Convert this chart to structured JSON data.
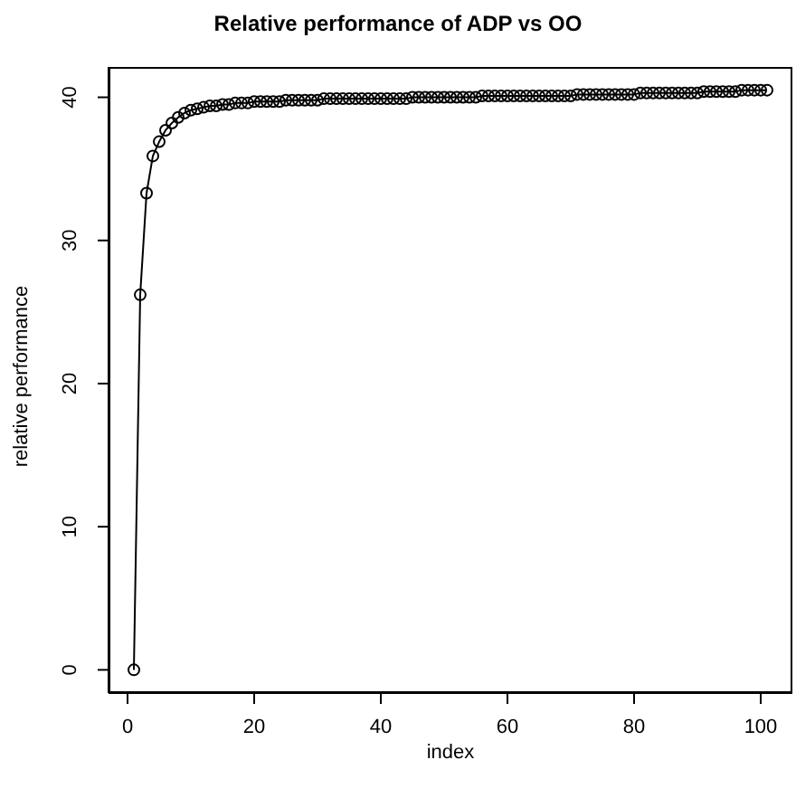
{
  "chart_data": {
    "type": "line",
    "title": "Relative performance of ADP vs OO",
    "xlabel": "index",
    "ylabel": "relative performance",
    "x": [
      1,
      2,
      3,
      4,
      5,
      6,
      7,
      8,
      9,
      10,
      11,
      12,
      13,
      14,
      15,
      16,
      17,
      18,
      19,
      20,
      21,
      22,
      23,
      24,
      25,
      26,
      27,
      28,
      29,
      30,
      31,
      32,
      33,
      34,
      35,
      36,
      37,
      38,
      39,
      40,
      41,
      42,
      43,
      44,
      45,
      46,
      47,
      48,
      49,
      50,
      51,
      52,
      53,
      54,
      55,
      56,
      57,
      58,
      59,
      60,
      61,
      62,
      63,
      64,
      65,
      66,
      67,
      68,
      69,
      70,
      71,
      72,
      73,
      74,
      75,
      76,
      77,
      78,
      79,
      80,
      81,
      82,
      83,
      84,
      85,
      86,
      87,
      88,
      89,
      90,
      91,
      92,
      93,
      94,
      95,
      96,
      97,
      98,
      99,
      100,
      101
    ],
    "series": [
      {
        "color": "#000000",
        "values": [
          0,
          26.2,
          33.3,
          35.9,
          36.9,
          37.7,
          38.2,
          38.6,
          38.9,
          39.1,
          39.2,
          39.3,
          39.4,
          39.4,
          39.5,
          39.5,
          39.6,
          39.6,
          39.6,
          39.7,
          39.7,
          39.7,
          39.7,
          39.7,
          39.8,
          39.8,
          39.8,
          39.8,
          39.8,
          39.8,
          39.9,
          39.9,
          39.9,
          39.9,
          39.9,
          39.9,
          39.9,
          39.9,
          39.9,
          39.9,
          39.9,
          39.9,
          39.9,
          39.9,
          40.0,
          40.0,
          40.0,
          40.0,
          40.0,
          40.0,
          40.0,
          40.0,
          40.0,
          40.0,
          40.0,
          40.1,
          40.1,
          40.1,
          40.1,
          40.1,
          40.1,
          40.1,
          40.1,
          40.1,
          40.1,
          40.1,
          40.1,
          40.1,
          40.1,
          40.1,
          40.2,
          40.2,
          40.2,
          40.2,
          40.2,
          40.2,
          40.2,
          40.2,
          40.2,
          40.2,
          40.3,
          40.3,
          40.3,
          40.3,
          40.3,
          40.3,
          40.3,
          40.3,
          40.3,
          40.3,
          40.4,
          40.4,
          40.4,
          40.4,
          40.4,
          40.4,
          40.5,
          40.5,
          40.5,
          40.5,
          40.5
        ]
      }
    ],
    "xlim": [
      -3,
      105
    ],
    "xticks": [
      0,
      20,
      40,
      60,
      80,
      100
    ],
    "ylim": [
      -1.62,
      42.12
    ],
    "yticks": [
      0,
      10,
      20,
      30,
      40
    ],
    "grid": false,
    "legend": false,
    "marker": "circle",
    "line_style": "solid"
  }
}
